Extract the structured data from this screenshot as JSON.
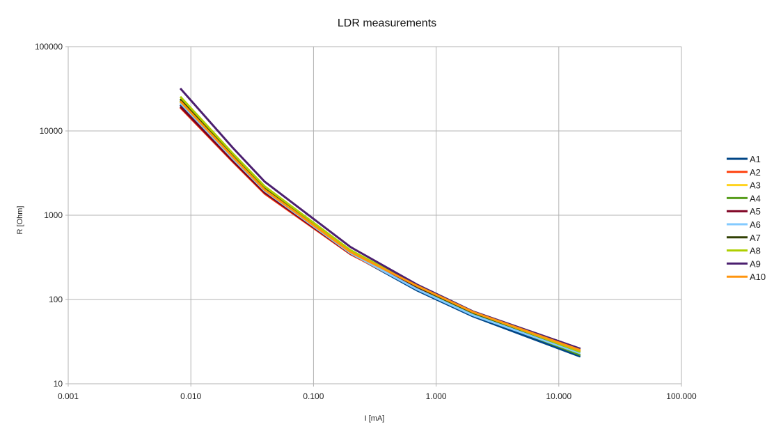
{
  "chart_data": {
    "type": "line",
    "title": "LDR measurements",
    "xlabel": "I [mA]",
    "ylabel": "R [Ohm]",
    "xscale": "log",
    "yscale": "log",
    "xlim": [
      0.001,
      100
    ],
    "ylim": [
      10,
      100000
    ],
    "grid": true,
    "legend_position": "right",
    "x_ticks": [
      0.001,
      0.01,
      0.1,
      1,
      10,
      100
    ],
    "x_tick_labels": [
      "0.001",
      "0.010",
      "0.100",
      "1.000",
      "10.000",
      "100.000"
    ],
    "y_ticks": [
      10,
      100,
      1000,
      10000,
      100000
    ],
    "y_tick_labels": [
      "10",
      "100",
      "1000",
      "10000",
      "100000"
    ],
    "x": [
      0.0082,
      0.022,
      0.04,
      0.2,
      0.7,
      2.0,
      15.0
    ],
    "series": [
      {
        "name": "A1",
        "color": "#004586",
        "values": [
          20500,
          4600,
          1900,
          350,
          128,
          63,
          21
        ]
      },
      {
        "name": "A2",
        "color": "#ff420e",
        "values": [
          19000,
          4300,
          1800,
          345,
          135,
          68,
          24
        ]
      },
      {
        "name": "A3",
        "color": "#ffd320",
        "values": [
          22000,
          4800,
          2000,
          360,
          140,
          70,
          25
        ]
      },
      {
        "name": "A4",
        "color": "#579d1c",
        "values": [
          23000,
          4900,
          2050,
          370,
          138,
          68,
          22
        ]
      },
      {
        "name": "A5",
        "color": "#7e0021",
        "values": [
          19500,
          4400,
          1850,
          350,
          140,
          72,
          26
        ]
      },
      {
        "name": "A6",
        "color": "#83caff",
        "values": [
          21500,
          4700,
          1950,
          355,
          132,
          65,
          23
        ]
      },
      {
        "name": "A7",
        "color": "#314004",
        "values": [
          24000,
          5200,
          2150,
          380,
          142,
          70,
          24
        ]
      },
      {
        "name": "A8",
        "color": "#aecf00",
        "values": [
          25500,
          5400,
          2200,
          385,
          145,
          71,
          24
        ]
      },
      {
        "name": "A9",
        "color": "#4b1f6f",
        "values": [
          32000,
          6300,
          2500,
          420,
          150,
          72,
          26
        ]
      },
      {
        "name": "A10",
        "color": "#ff950e",
        "values": [
          22500,
          4900,
          2000,
          365,
          145,
          71,
          25
        ]
      }
    ]
  }
}
